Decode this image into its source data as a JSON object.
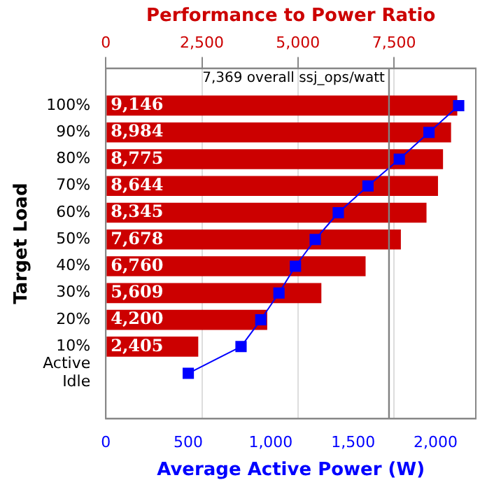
{
  "chart_data": {
    "type": "bar",
    "orientation": "horizontal",
    "title": "Performance to Power Ratio",
    "xlabel": "Average Active Power (W)",
    "ylabel": "Target Load",
    "categories": [
      "100%",
      "90%",
      "80%",
      "70%",
      "60%",
      "50%",
      "40%",
      "30%",
      "20%",
      "10%",
      "Active Idle"
    ],
    "series": [
      {
        "axis": "x2",
        "color": "#cc0000",
        "values": [
          9146,
          8984,
          8775,
          8644,
          8345,
          7678,
          6760,
          5609,
          4200,
          2405,
          null
        ],
        "value_labels": [
          "9,146",
          "8,984",
          "8,775",
          "8,644",
          "8,345",
          "7,678",
          "6,760",
          "5,609",
          "4,200",
          "2,405",
          null
        ]
      },
      {
        "type": "line",
        "color": "#0000ff",
        "marker": "square",
        "values": [
          2140,
          1960,
          1780,
          1590,
          1410,
          1270,
          1150,
          1050,
          940,
          820,
          500
        ]
      }
    ],
    "xlim": [
      0,
      2244
    ],
    "xticks": [
      0,
      500,
      {
        "value": 1000,
        "label": "1,000"
      },
      {
        "value": 1500,
        "label": "1,500"
      },
      {
        "value": 2000,
        "label": "2,000"
      }
    ],
    "x2lim": [
      0,
      9628
    ],
    "x2ticks": [
      0,
      {
        "value": 2500,
        "label": "2,500"
      },
      {
        "value": 5000,
        "label": "5,000"
      },
      {
        "value": 7500,
        "label": "7,500"
      }
    ],
    "ref_lines": [
      {
        "axis": "x2",
        "value": 7369,
        "label": "7,369 overall ssj_ops/watt",
        "color": "#808080"
      }
    ],
    "grid": "x",
    "legend": false
  }
}
